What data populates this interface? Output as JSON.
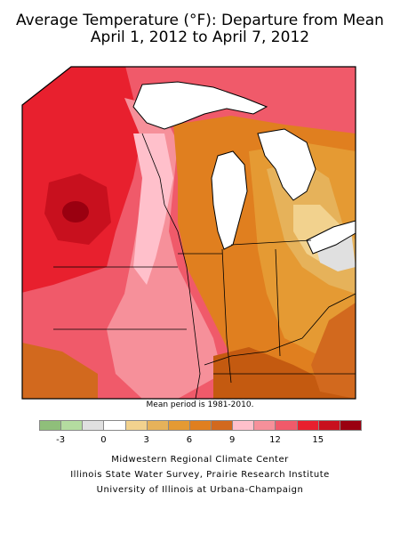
{
  "title_line1": "Average Temperature (°F): Departure from Mean",
  "title_line2": "April 1, 2012 to April 7, 2012",
  "note": "Mean period is 1981-2010.",
  "legend": {
    "colors": [
      "#8fbf7a",
      "#b4dca0",
      "#e0e0e0",
      "#ffffff",
      "#f2d28e",
      "#e6b25a",
      "#e59a33",
      "#e07f1f",
      "#d2691e",
      "#ffc0cb",
      "#f6909a",
      "#f05a6a",
      "#e8202e",
      "#c8101e",
      "#9a0010"
    ],
    "ticks": [
      "-3",
      "0",
      "3",
      "6",
      "9",
      "12",
      "15"
    ]
  },
  "credits": [
    "Midwestern Regional Climate Center",
    "Illinois State Water Survey, Prairie Research Institute",
    "University of Illinois at Urbana-Champaign"
  ],
  "map": {
    "palette": {
      "deep_red": "#9a0010",
      "red": "#e8202e",
      "red_pink": "#f05a6a",
      "pink": "#f6909a",
      "light_pink": "#ffc0cb",
      "dark_orange": "#c45a10",
      "orange": "#d2691e",
      "med_orange": "#e07f1f",
      "light_orange": "#e59a33",
      "tan": "#e6b25a",
      "light_tan": "#f2d28e",
      "gray": "#e0e0e0",
      "lake": "#ffffff"
    }
  }
}
